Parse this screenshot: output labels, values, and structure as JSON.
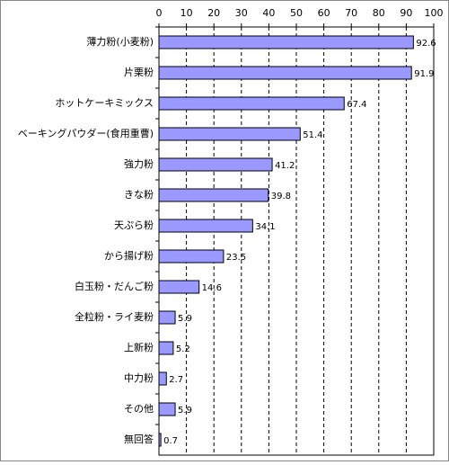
{
  "chart_data": {
    "type": "bar",
    "orientation": "horizontal",
    "categories": [
      "薄力粉(小麦粉)",
      "片栗粉",
      "ホットケーキミックス",
      "ベーキングパウダー(食用重曹)",
      "強力粉",
      "きな粉",
      "天ぷら粉",
      "から揚げ粉",
      "白玉粉・だんご粉",
      "全粒粉・ライ麦粉",
      "上新粉",
      "中力粉",
      "その他",
      "無回答"
    ],
    "values": [
      92.6,
      91.9,
      67.4,
      51.4,
      41.2,
      39.8,
      34.1,
      23.5,
      14.6,
      5.9,
      5.2,
      2.7,
      5.9,
      0.7
    ],
    "color": "#9999ff",
    "xlim": [
      0,
      100
    ],
    "xticks": [
      0,
      10,
      20,
      30,
      40,
      50,
      60,
      70,
      80,
      90,
      100
    ],
    "grid": true
  }
}
